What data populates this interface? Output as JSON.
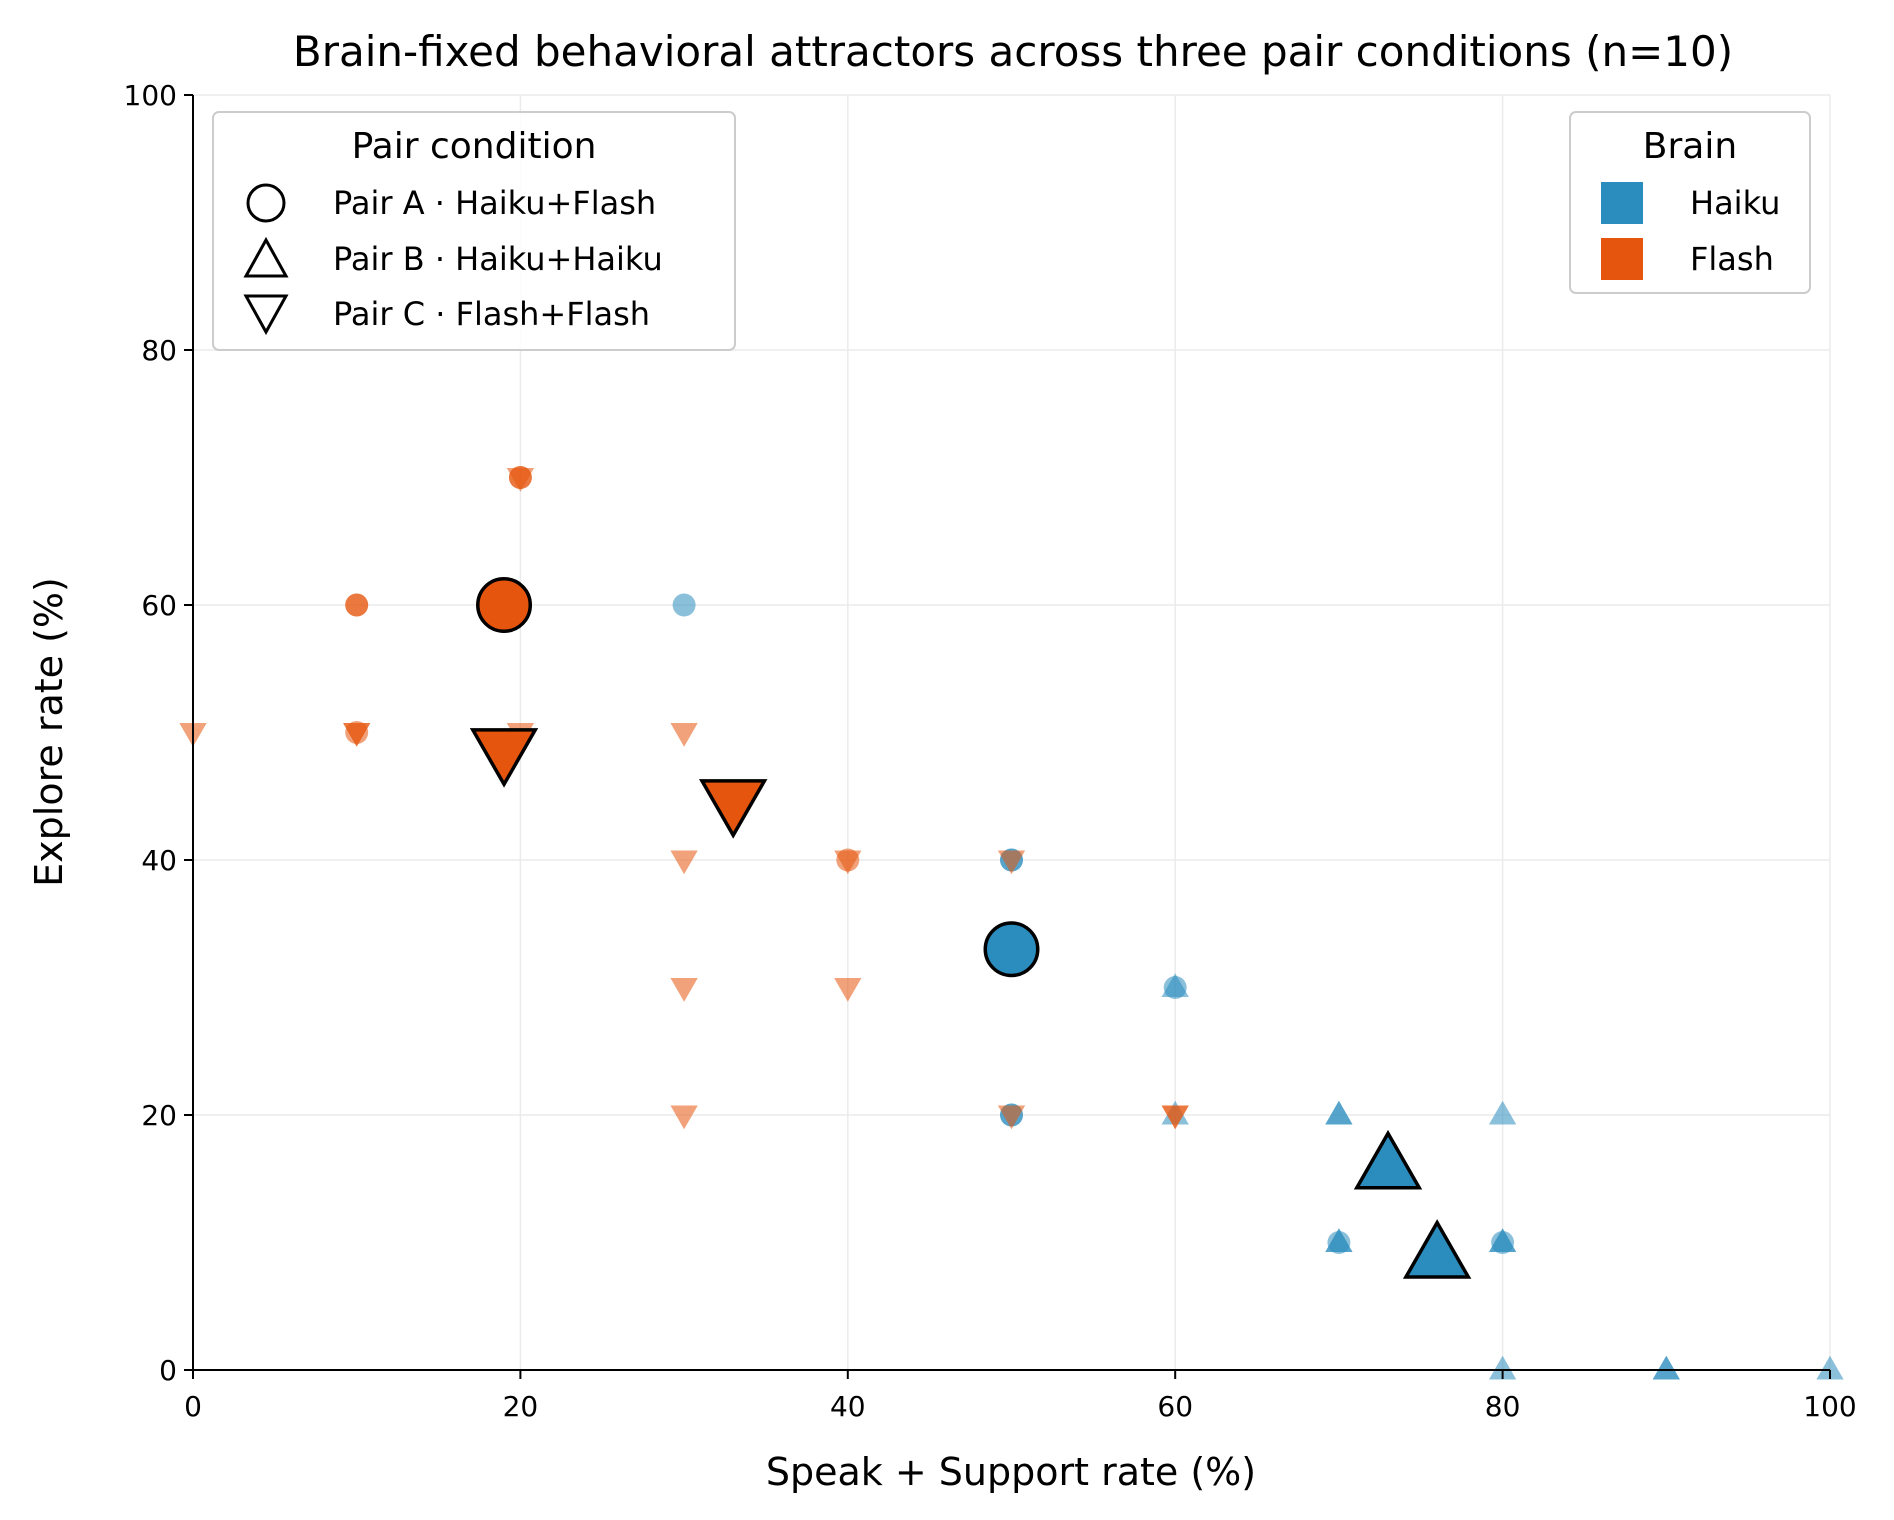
{
  "chart_data": {
    "type": "scatter",
    "title": "Brain-fixed behavioral attractors across three pair conditions (n=10)",
    "xlabel": "Speak + Support rate (%)",
    "ylabel": "Explore rate (%)",
    "xlim": [
      0,
      100
    ],
    "ylim": [
      0,
      100
    ],
    "xticks": [
      "0",
      "20",
      "40",
      "60",
      "80",
      "100"
    ],
    "yticks": [
      "0",
      "20",
      "40",
      "60",
      "80",
      "100"
    ],
    "grid": true,
    "colors": {
      "Haiku": "#2b8cbe",
      "Flash": "#e6550d"
    },
    "marker_legend": {
      "title": "Pair condition",
      "placement": "top-left",
      "entries": [
        {
          "label": "Pair A · Haiku+Flash",
          "marker": "circle"
        },
        {
          "label": "Pair B · Haiku+Haiku",
          "marker": "triangle-up"
        },
        {
          "label": "Pair C · Flash+Flash",
          "marker": "triangle-down"
        }
      ]
    },
    "color_legend": {
      "title": "Brain",
      "placement": "top-right",
      "entries": [
        {
          "label": "Haiku",
          "color": "#2b8cbe"
        },
        {
          "label": "Flash",
          "color": "#e6550d"
        }
      ]
    },
    "points": [
      {
        "x": 30,
        "y": 60,
        "brain": "Haiku",
        "pair": "A"
      },
      {
        "x": 50,
        "y": 40,
        "brain": "Haiku",
        "pair": "A"
      },
      {
        "x": 50,
        "y": 40,
        "brain": "Haiku",
        "pair": "A"
      },
      {
        "x": 50,
        "y": 20,
        "brain": "Haiku",
        "pair": "A"
      },
      {
        "x": 50,
        "y": 20,
        "brain": "Haiku",
        "pair": "A"
      },
      {
        "x": 60,
        "y": 30,
        "brain": "Haiku",
        "pair": "A"
      },
      {
        "x": 70,
        "y": 10,
        "brain": "Haiku",
        "pair": "A"
      },
      {
        "x": 80,
        "y": 10,
        "brain": "Haiku",
        "pair": "A"
      },
      {
        "x": 20,
        "y": 70,
        "brain": "Flash",
        "pair": "A"
      },
      {
        "x": 20,
        "y": 70,
        "brain": "Flash",
        "pair": "A"
      },
      {
        "x": 10,
        "y": 60,
        "brain": "Flash",
        "pair": "A"
      },
      {
        "x": 10,
        "y": 60,
        "brain": "Flash",
        "pair": "A"
      },
      {
        "x": 10,
        "y": 50,
        "brain": "Flash",
        "pair": "A"
      },
      {
        "x": 40,
        "y": 40,
        "brain": "Flash",
        "pair": "A"
      },
      {
        "x": 60,
        "y": 30,
        "brain": "Haiku",
        "pair": "B"
      },
      {
        "x": 60,
        "y": 20,
        "brain": "Haiku",
        "pair": "B"
      },
      {
        "x": 70,
        "y": 20,
        "brain": "Haiku",
        "pair": "B"
      },
      {
        "x": 70,
        "y": 20,
        "brain": "Haiku",
        "pair": "B"
      },
      {
        "x": 70,
        "y": 10,
        "brain": "Haiku",
        "pair": "B"
      },
      {
        "x": 70,
        "y": 10,
        "brain": "Haiku",
        "pair": "B"
      },
      {
        "x": 80,
        "y": 20,
        "brain": "Haiku",
        "pair": "B"
      },
      {
        "x": 80,
        "y": 10,
        "brain": "Haiku",
        "pair": "B"
      },
      {
        "x": 80,
        "y": 10,
        "brain": "Haiku",
        "pair": "B"
      },
      {
        "x": 80,
        "y": 0,
        "brain": "Haiku",
        "pair": "B"
      },
      {
        "x": 90,
        "y": 0,
        "brain": "Haiku",
        "pair": "B"
      },
      {
        "x": 90,
        "y": 0,
        "brain": "Haiku",
        "pair": "B"
      },
      {
        "x": 100,
        "y": 0,
        "brain": "Haiku",
        "pair": "B"
      },
      {
        "x": 0,
        "y": 50,
        "brain": "Flash",
        "pair": "C"
      },
      {
        "x": 10,
        "y": 50,
        "brain": "Flash",
        "pair": "C"
      },
      {
        "x": 10,
        "y": 50,
        "brain": "Flash",
        "pair": "C"
      },
      {
        "x": 20,
        "y": 70,
        "brain": "Flash",
        "pair": "C"
      },
      {
        "x": 20,
        "y": 50,
        "brain": "Flash",
        "pair": "C"
      },
      {
        "x": 30,
        "y": 50,
        "brain": "Flash",
        "pair": "C"
      },
      {
        "x": 30,
        "y": 40,
        "brain": "Flash",
        "pair": "C"
      },
      {
        "x": 30,
        "y": 30,
        "brain": "Flash",
        "pair": "C"
      },
      {
        "x": 30,
        "y": 20,
        "brain": "Flash",
        "pair": "C"
      },
      {
        "x": 40,
        "y": 40,
        "brain": "Flash",
        "pair": "C"
      },
      {
        "x": 40,
        "y": 30,
        "brain": "Flash",
        "pair": "C"
      },
      {
        "x": 50,
        "y": 40,
        "brain": "Flash",
        "pair": "C"
      },
      {
        "x": 50,
        "y": 20,
        "brain": "Flash",
        "pair": "C"
      },
      {
        "x": 60,
        "y": 20,
        "brain": "Flash",
        "pair": "C"
      },
      {
        "x": 60,
        "y": 20,
        "brain": "Flash",
        "pair": "C"
      }
    ],
    "means": [
      {
        "x": 19,
        "y": 60,
        "brain": "Flash",
        "pair": "A"
      },
      {
        "x": 50,
        "y": 33,
        "brain": "Haiku",
        "pair": "A"
      },
      {
        "x": 19,
        "y": 48.5,
        "brain": "Flash",
        "pair": "C"
      },
      {
        "x": 33,
        "y": 44.5,
        "brain": "Flash",
        "pair": "C"
      },
      {
        "x": 73,
        "y": 16,
        "brain": "Haiku",
        "pair": "B"
      },
      {
        "x": 76,
        "y": 9,
        "brain": "Haiku",
        "pair": "B"
      }
    ]
  }
}
